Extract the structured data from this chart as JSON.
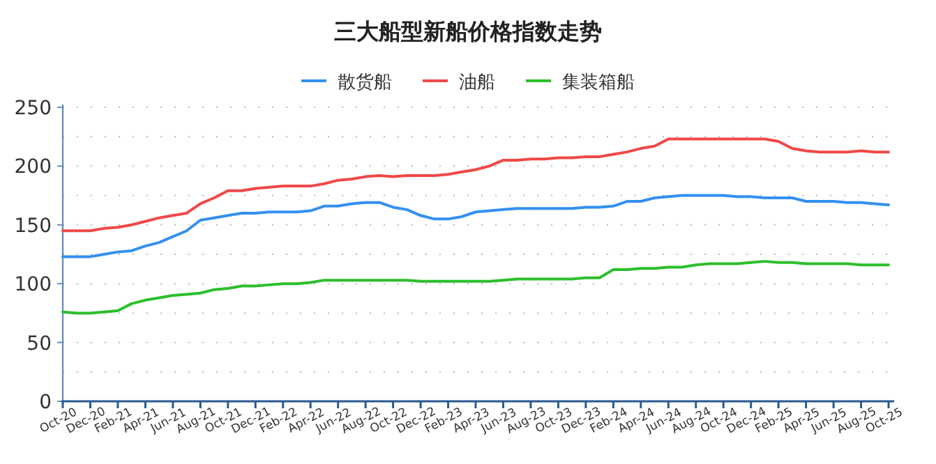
{
  "chart_data": {
    "type": "line",
    "title": "三大船型新船价格指数走势",
    "categories": [
      "Oct-20",
      null,
      "Dec-20",
      null,
      "Feb-21",
      null,
      "Apr-21",
      null,
      "Jun-21",
      null,
      "Aug-21",
      null,
      "Oct-21",
      null,
      "Dec-21",
      null,
      "Feb-22",
      null,
      "Apr-22",
      null,
      "Jun-22",
      null,
      "Aug-22",
      null,
      "Oct-22",
      null,
      "Dec-22",
      null,
      "Feb-23",
      null,
      "Apr-23",
      null,
      "Jun-23",
      null,
      "Aug-23",
      null,
      "Oct-23",
      null,
      "Dec-23",
      null,
      "Feb-24",
      null,
      "Apr-24",
      null,
      "Jun-24",
      null,
      "Aug-24",
      null,
      "Oct-24",
      null,
      "Dec-24",
      null,
      "Feb-25",
      null,
      "Apr-25",
      null,
      "Jun-25",
      null,
      "Aug-25",
      null,
      "Oct-25"
    ],
    "series": [
      {
        "name": "散货船",
        "color": "#3390f0",
        "values": [
          123,
          123,
          123,
          125,
          127,
          128,
          132,
          135,
          140,
          145,
          154,
          156,
          158,
          160,
          160,
          161,
          161,
          161,
          162,
          166,
          166,
          168,
          169,
          169,
          165,
          163,
          158,
          155,
          155,
          157,
          161,
          162,
          163,
          164,
          164,
          164,
          164,
          164,
          165,
          165,
          166,
          170,
          170,
          173,
          174,
          175,
          175,
          175,
          175,
          174,
          174,
          173,
          173,
          173,
          170,
          170,
          170,
          169,
          169,
          168,
          167
        ]
      },
      {
        "name": "油船",
        "color": "#f04848",
        "values": [
          145,
          145,
          145,
          147,
          148,
          150,
          153,
          156,
          158,
          160,
          168,
          173,
          179,
          179,
          181,
          182,
          183,
          183,
          183,
          185,
          188,
          189,
          191,
          192,
          191,
          192,
          192,
          192,
          193,
          195,
          197,
          200,
          205,
          205,
          206,
          206,
          207,
          207,
          208,
          208,
          210,
          212,
          215,
          217,
          223,
          223,
          223,
          223,
          223,
          223,
          223,
          223,
          221,
          215,
          213,
          212,
          212,
          212,
          213,
          212,
          212
        ]
      },
      {
        "name": "集装箱船",
        "color": "#2cbf2c",
        "values": [
          76,
          75,
          75,
          76,
          77,
          83,
          86,
          88,
          90,
          91,
          92,
          95,
          96,
          98,
          98,
          99,
          100,
          100,
          101,
          103,
          103,
          103,
          103,
          103,
          103,
          103,
          102,
          102,
          102,
          102,
          102,
          102,
          103,
          104,
          104,
          104,
          104,
          104,
          105,
          105,
          112,
          112,
          113,
          113,
          114,
          114,
          116,
          117,
          117,
          117,
          118,
          119,
          118,
          118,
          117,
          117,
          117,
          117,
          116,
          116,
          116
        ]
      }
    ],
    "ylim": [
      0,
      250
    ],
    "yticks": [
      0,
      {
        "value": 25,
        "label": null
      },
      50,
      {
        "value": 75,
        "label": null
      },
      100,
      {
        "value": 125,
        "label": null
      },
      150,
      {
        "value": 175,
        "label": null
      },
      200,
      {
        "value": 225,
        "label": null
      },
      250
    ],
    "grid": "y",
    "legend": "top",
    "marker": "none",
    "line_style": "solid"
  }
}
